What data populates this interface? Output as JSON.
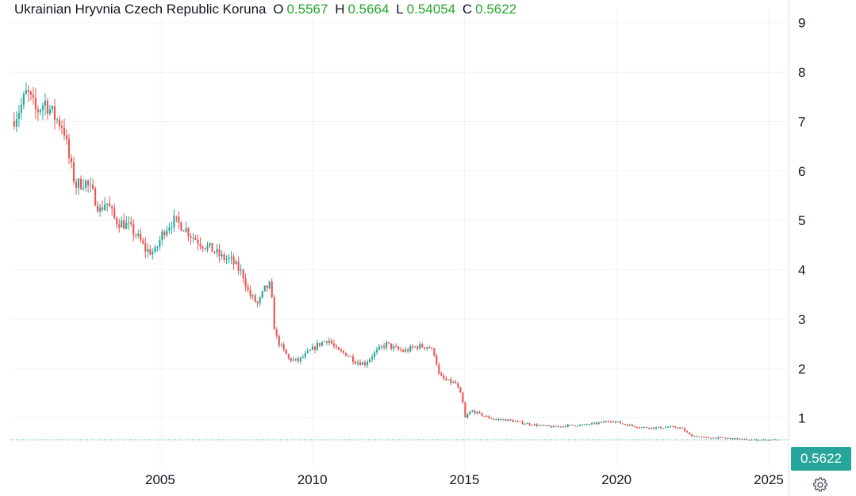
{
  "legend": {
    "name": "Ukrainian Hryvnia Czech Republic Koruna",
    "open_label": "O",
    "open": "0.5567",
    "high_label": "H",
    "high": "0.5664",
    "low_label": "L",
    "low": "0.54054",
    "close_label": "C",
    "close": "0.5622"
  },
  "last_price": "0.5622",
  "colors": {
    "up": "#26a69a",
    "down": "#ef5350",
    "grid": "#f0f3fa",
    "badge": "#26a69a",
    "price_line": "#26a69a",
    "ohlc_value": "#26a62e"
  },
  "icons": {
    "settings": "gear-icon"
  },
  "chart_data": {
    "type": "candlestick",
    "title": "Ukrainian Hryvnia Czech Republic Koruna",
    "x_axis": {
      "ticks": [
        "2005",
        "2010",
        "2015",
        "2020",
        "2025"
      ],
      "range": [
        2000.1,
        2025.6
      ]
    },
    "y_axis": {
      "position": "right",
      "ticks": [
        1,
        2,
        3,
        4,
        5,
        6,
        7,
        8,
        9
      ],
      "range": [
        0.0,
        9.3
      ]
    },
    "grid": true,
    "last_value": 0.5622,
    "trend_points": [
      [
        2000.2,
        7.0
      ],
      [
        2000.5,
        7.3
      ],
      [
        2000.7,
        7.6
      ],
      [
        2001.0,
        7.2
      ],
      [
        2001.3,
        7.4
      ],
      [
        2001.6,
        7.1
      ],
      [
        2001.9,
        6.9
      ],
      [
        2002.1,
        6.2
      ],
      [
        2002.3,
        5.7
      ],
      [
        2002.6,
        5.8
      ],
      [
        2002.9,
        5.5
      ],
      [
        2003.1,
        5.2
      ],
      [
        2003.3,
        5.4
      ],
      [
        2003.6,
        5.0
      ],
      [
        2004.0,
        4.9
      ],
      [
        2004.3,
        4.7
      ],
      [
        2004.6,
        4.4
      ],
      [
        2004.9,
        4.35
      ],
      [
        2005.2,
        4.8
      ],
      [
        2005.5,
        5.0
      ],
      [
        2005.8,
        4.9
      ],
      [
        2006.1,
        4.7
      ],
      [
        2006.4,
        4.55
      ],
      [
        2006.8,
        4.4
      ],
      [
        2007.1,
        4.25
      ],
      [
        2007.4,
        4.2
      ],
      [
        2007.8,
        3.9
      ],
      [
        2008.0,
        3.5
      ],
      [
        2008.3,
        3.3
      ],
      [
        2008.5,
        3.6
      ],
      [
        2008.7,
        3.7
      ],
      [
        2008.85,
        2.7
      ],
      [
        2009.0,
        2.5
      ],
      [
        2009.3,
        2.2
      ],
      [
        2009.6,
        2.15
      ],
      [
        2009.9,
        2.3
      ],
      [
        2010.3,
        2.5
      ],
      [
        2010.6,
        2.6
      ],
      [
        2010.9,
        2.35
      ],
      [
        2011.2,
        2.3
      ],
      [
        2011.5,
        2.15
      ],
      [
        2011.8,
        2.1
      ],
      [
        2012.1,
        2.3
      ],
      [
        2012.5,
        2.5
      ],
      [
        2012.8,
        2.4
      ],
      [
        2013.1,
        2.35
      ],
      [
        2013.5,
        2.45
      ],
      [
        2013.9,
        2.45
      ],
      [
        2014.1,
        2.3
      ],
      [
        2014.25,
        1.85
      ],
      [
        2014.5,
        1.75
      ],
      [
        2014.8,
        1.7
      ],
      [
        2015.0,
        1.4
      ],
      [
        2015.1,
        1.0
      ],
      [
        2015.3,
        1.15
      ],
      [
        2015.7,
        1.05
      ],
      [
        2016.0,
        0.98
      ],
      [
        2016.5,
        0.96
      ],
      [
        2017.0,
        0.9
      ],
      [
        2017.5,
        0.85
      ],
      [
        2018.0,
        0.82
      ],
      [
        2018.5,
        0.85
      ],
      [
        2019.0,
        0.86
      ],
      [
        2019.5,
        0.9
      ],
      [
        2019.9,
        0.95
      ],
      [
        2020.3,
        0.88
      ],
      [
        2020.8,
        0.82
      ],
      [
        2021.3,
        0.8
      ],
      [
        2021.8,
        0.82
      ],
      [
        2022.2,
        0.8
      ],
      [
        2022.5,
        0.65
      ],
      [
        2023.0,
        0.6
      ],
      [
        2023.5,
        0.6
      ],
      [
        2024.0,
        0.58
      ],
      [
        2024.5,
        0.56
      ],
      [
        2025.0,
        0.56
      ],
      [
        2025.3,
        0.5622
      ]
    ]
  }
}
